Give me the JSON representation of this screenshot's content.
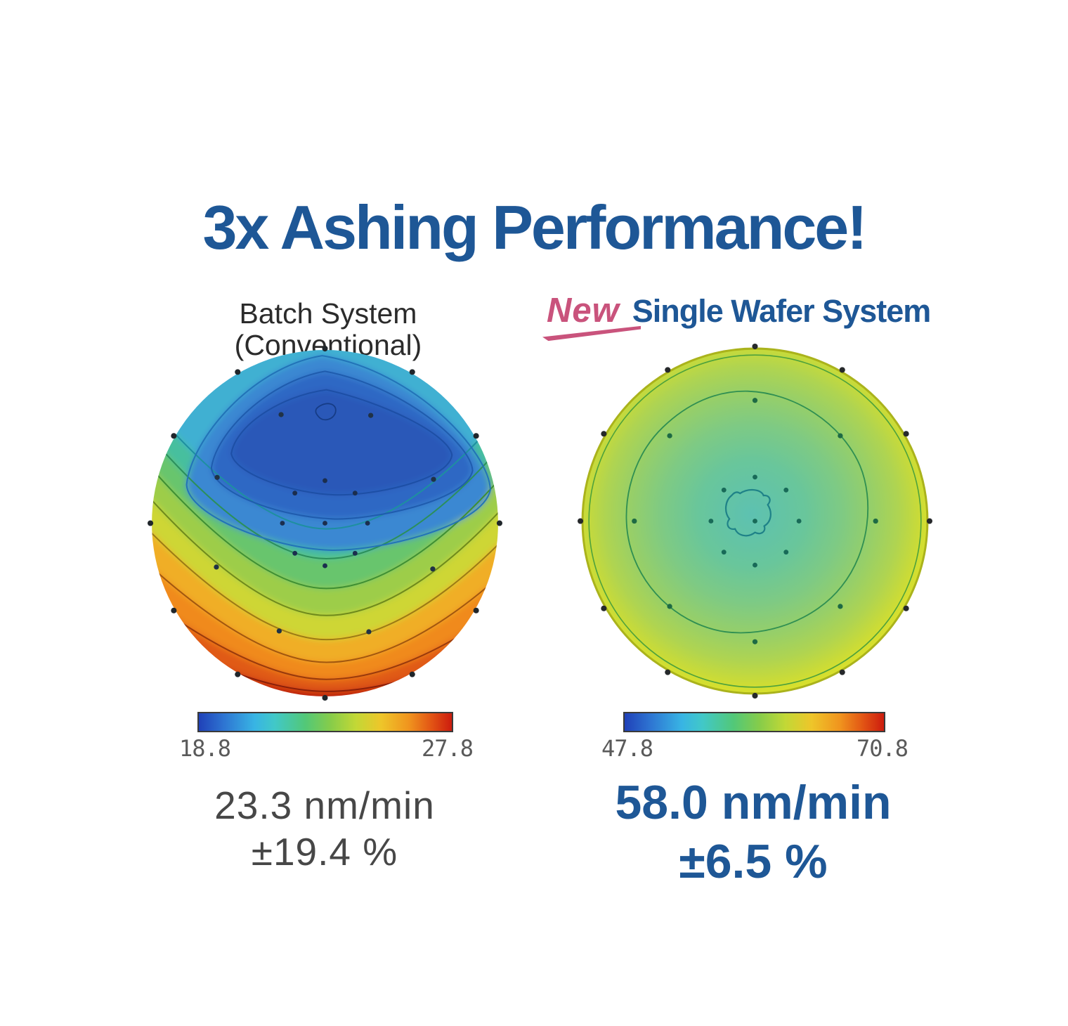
{
  "header": {
    "title": "3x Ashing Performance!"
  },
  "colors": {
    "navy": "#1e5796",
    "pink": "#c9537c",
    "label_black": "#2b2b2b",
    "stat_gray": "#474747",
    "tick_gray": "#5a5a5a"
  },
  "left_panel": {
    "label": "Batch System (Conventional)",
    "colorbar_min": "18.8",
    "colorbar_max": "27.8",
    "rate": "23.3 nm/min",
    "uniformity": "±19.4 %"
  },
  "right_panel": {
    "badge": "New",
    "label": "Single Wafer System",
    "colorbar_min": "47.8",
    "colorbar_max": "70.8",
    "rate": "58.0 nm/min",
    "uniformity": "±6.5 %"
  },
  "chart_data": [
    {
      "type": "heatmap",
      "subtype": "filled-contour wafer map",
      "panel": "Batch System (Conventional)",
      "variable": "ashing rate",
      "unit": "nm/min",
      "colormap": "jet (blue low to red high)",
      "colorbar": {
        "min": 18.8,
        "max": 27.8
      },
      "mean_rate_nm_min": 23.3,
      "uniformity_pct": 19.4,
      "n_contour_bands": 12,
      "distribution": "strongly non-uniform: low ~19-21 nm/min (dark blue) lobe in upper-center, values increase smoothly through cyan, green, yellow and orange to ~27-28 nm/min (dark red) along the bottom edge",
      "point_rings": [
        {
          "r": 246,
          "n": 12,
          "offset": 0,
          "color": "#20262b",
          "dot": 4
        },
        {
          "r": 165,
          "n": 8,
          "offset": 22,
          "color": "#203246",
          "dot": 3.6
        },
        {
          "r": 60,
          "n": 8,
          "offset": 0,
          "color": "#1b2e4e",
          "dot": 3.4
        },
        {
          "r": 0,
          "n": 1,
          "offset": 0,
          "color": "#1b2e4e",
          "dot": 3.4
        }
      ]
    },
    {
      "type": "heatmap",
      "subtype": "filled-contour wafer map",
      "panel": "New Single Wafer System",
      "variable": "ashing rate",
      "unit": "nm/min",
      "colormap": "jet (blue low to red high)",
      "colorbar": {
        "min": 47.8,
        "max": 70.8
      },
      "mean_rate_nm_min": 58.0,
      "uniformity_pct": 6.5,
      "n_contour_bands": 3,
      "distribution": "highly uniform: teal-green ~56-58 nm/min over most of the wafer, slightly cooler small blob at center, rising mildly to yellow-green ~60-62 nm/min at the outer rim",
      "point_rings": [
        {
          "r": 246,
          "n": 12,
          "offset": 0,
          "color": "#26292b",
          "dot": 4
        },
        {
          "r": 170,
          "n": 8,
          "offset": 0,
          "color": "#1e6a44",
          "dot": 3.6
        },
        {
          "r": 62,
          "n": 8,
          "offset": 0,
          "color": "#186a58",
          "dot": 3.4
        },
        {
          "r": 0,
          "n": 1,
          "offset": 0,
          "color": "#186a58",
          "dot": 3.4
        }
      ]
    }
  ]
}
